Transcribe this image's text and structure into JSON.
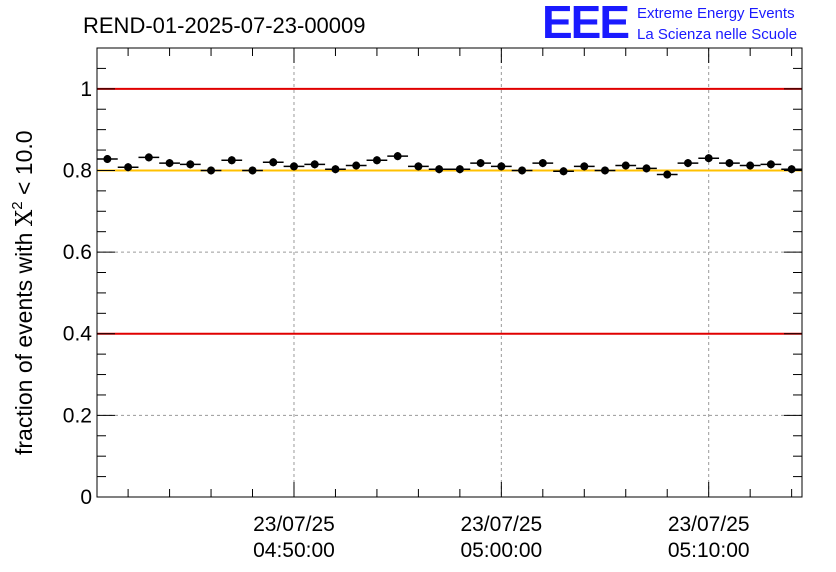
{
  "chart_data": {
    "type": "scatter",
    "title": "REND-01-2025-07-23-00009",
    "ylabel_prefix": "fraction of events with ",
    "ylabel_symbol": "X",
    "ylabel_sup": "2",
    "ylabel_suffix": " < 10.0",
    "xlabel": "",
    "ylim": [
      0,
      1.1
    ],
    "xlim_minutes": [
      0,
      34
    ],
    "yticks": [
      "0",
      "0.2",
      "0.4",
      "0.6",
      "0.8",
      "1"
    ],
    "ytick_values": [
      0,
      0.2,
      0.4,
      0.6,
      0.8,
      1.0
    ],
    "xticks": [
      {
        "date": "23/07/25",
        "time": "04:50:00",
        "minute": 9.5
      },
      {
        "date": "23/07/25",
        "time": "05:00:00",
        "minute": 19.5
      },
      {
        "date": "23/07/25",
        "time": "05:10:00",
        "minute": 29.5
      }
    ],
    "reference_lines": [
      {
        "value": 1.0,
        "color": "#e00000"
      },
      {
        "value": 0.8,
        "color": "#ffc000"
      },
      {
        "value": 0.4,
        "color": "#e00000"
      }
    ],
    "bin_width_minutes": 1,
    "series": [
      {
        "name": "fraction",
        "x": [
          0.5,
          1.5,
          2.5,
          3.5,
          4.5,
          5.5,
          6.5,
          7.5,
          8.5,
          9.5,
          10.5,
          11.5,
          12.5,
          13.5,
          14.5,
          15.5,
          16.5,
          17.5,
          18.5,
          19.5,
          20.5,
          21.5,
          22.5,
          23.5,
          24.5,
          25.5,
          26.5,
          27.5,
          28.5,
          29.5,
          30.5,
          31.5,
          32.5,
          33.5
        ],
        "values": [
          0.828,
          0.808,
          0.832,
          0.818,
          0.815,
          0.8,
          0.825,
          0.8,
          0.82,
          0.81,
          0.815,
          0.803,
          0.812,
          0.825,
          0.835,
          0.81,
          0.803,
          0.803,
          0.818,
          0.81,
          0.8,
          0.818,
          0.798,
          0.81,
          0.8,
          0.812,
          0.805,
          0.79,
          0.818,
          0.83,
          0.818,
          0.812,
          0.815,
          0.803
        ]
      }
    ]
  },
  "logo": {
    "mark": "EEE",
    "line1": "Extreme Energy Events",
    "line2": "La Scienza nelle Scuole"
  }
}
